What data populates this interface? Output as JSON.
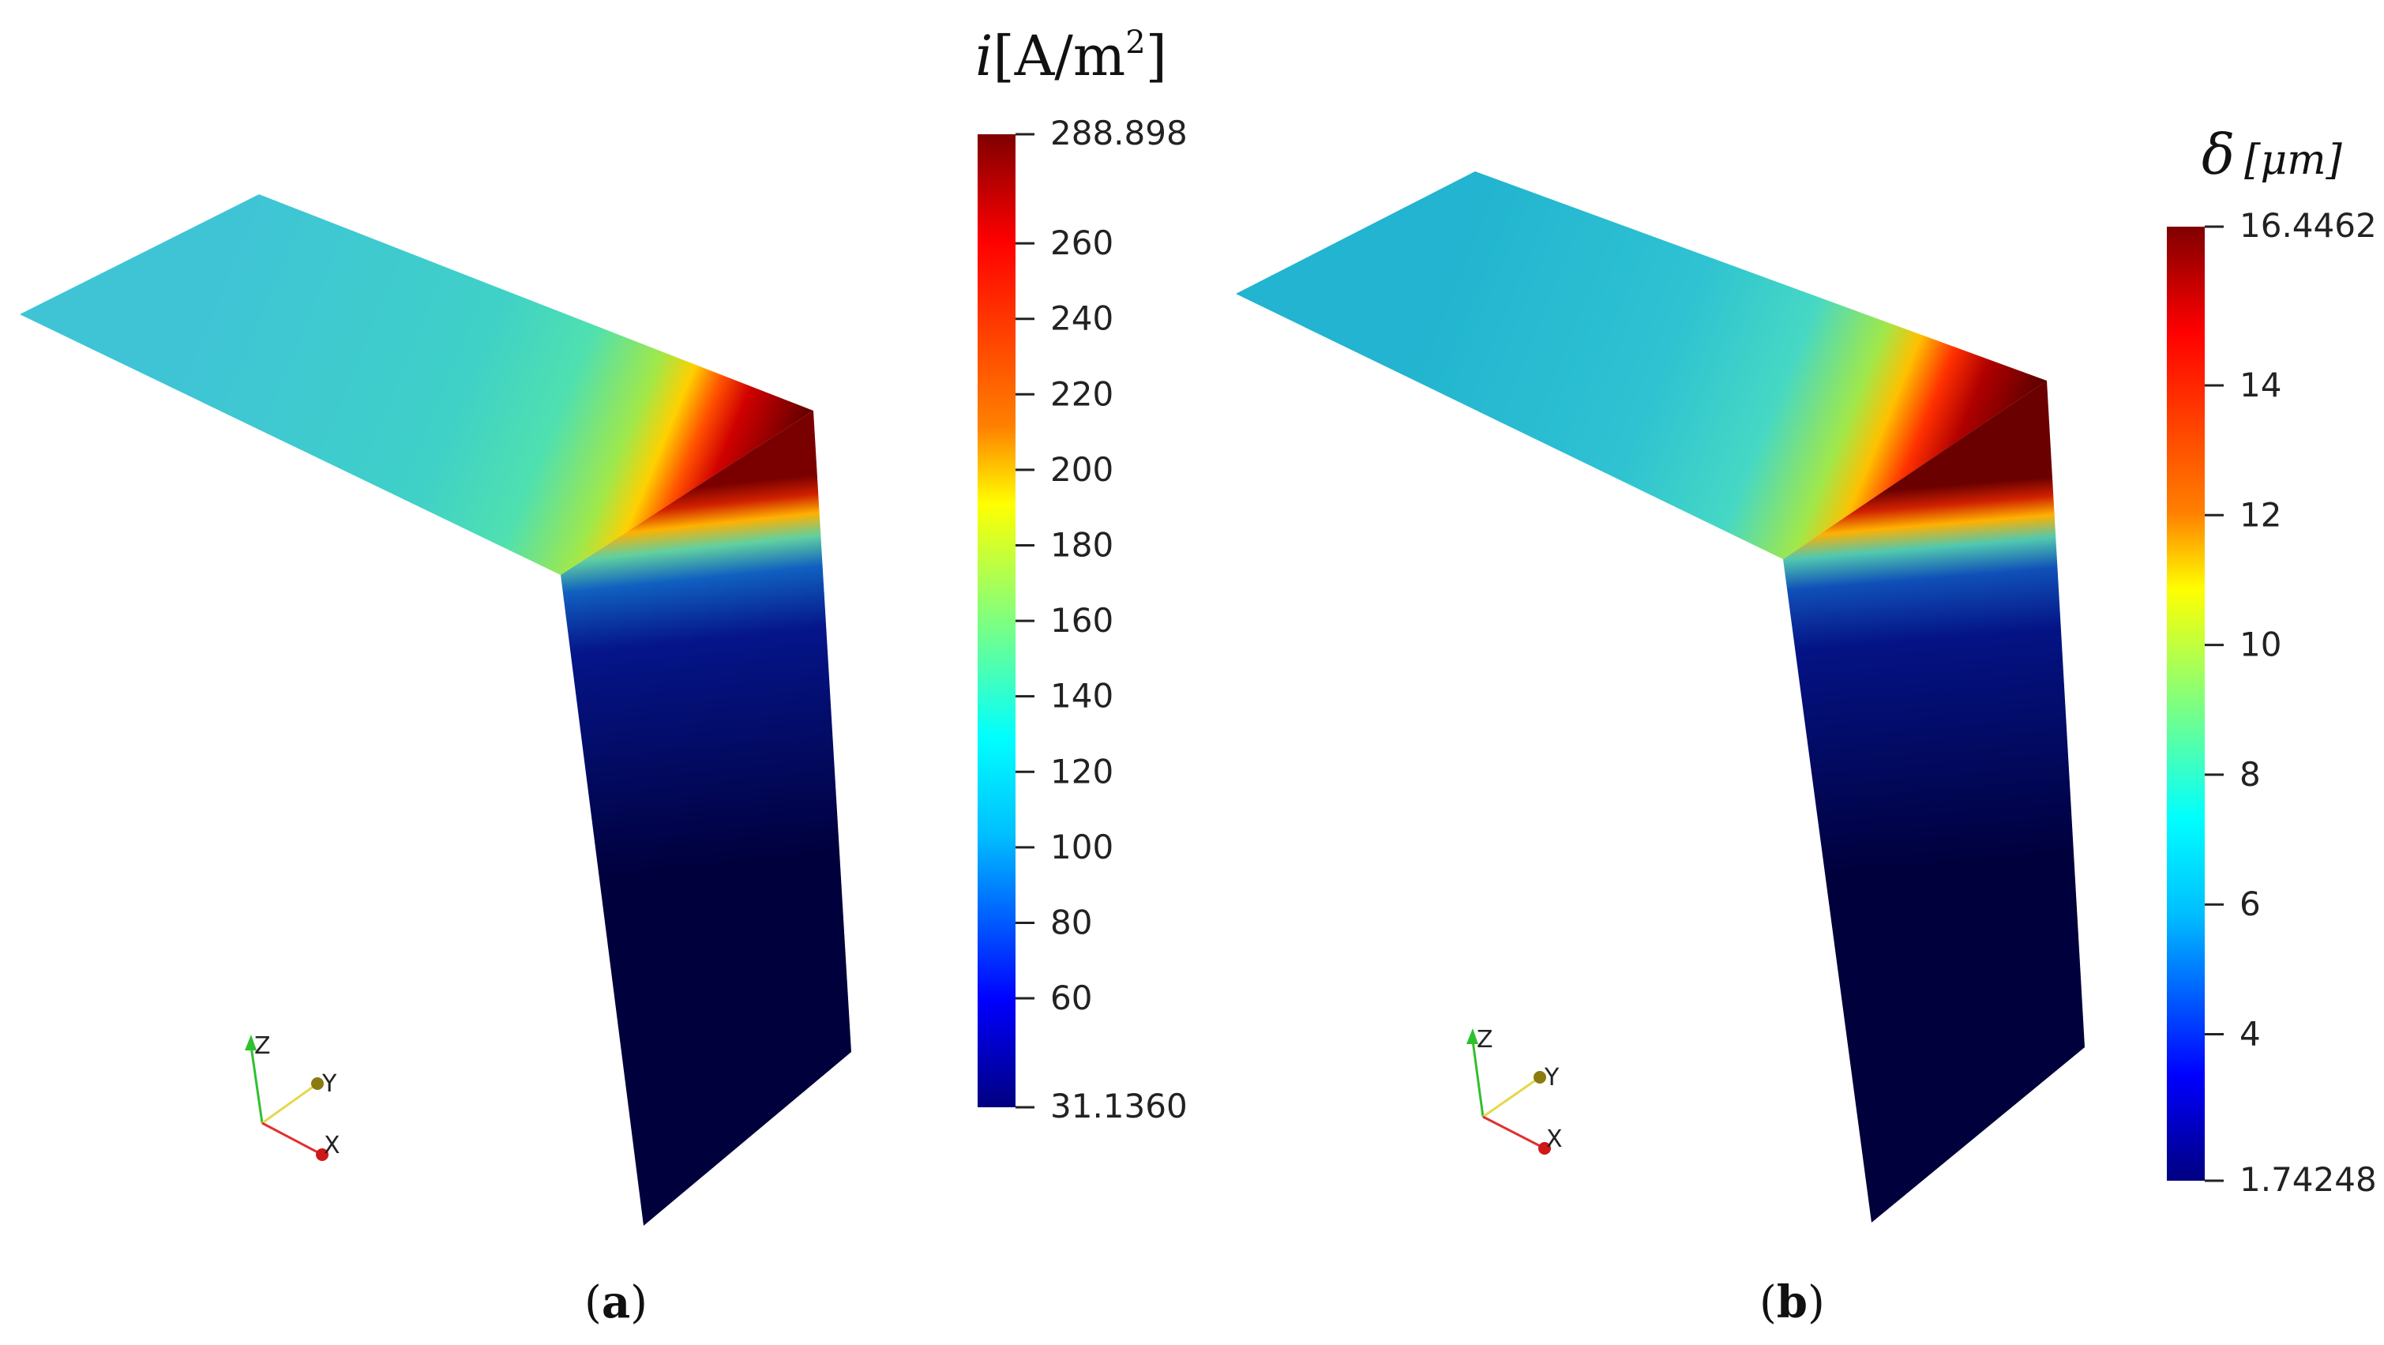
{
  "panels": [
    {
      "caption_open": "(",
      "caption_letter": "a",
      "caption_close": ")",
      "colorbar": {
        "title_var": "i",
        "title_unit": "[A/m",
        "title_exp": "2",
        "title_close": "]",
        "min_label": "31.1360",
        "max_label": "288.898",
        "ticks": [
          "260",
          "240",
          "220",
          "200",
          "180",
          "160",
          "140",
          "120",
          "100",
          "80",
          "60"
        ]
      },
      "axes_triad": {
        "z": "Z",
        "y": "Y",
        "x": "X"
      }
    },
    {
      "caption_open": "(",
      "caption_letter": "b",
      "caption_close": ")",
      "colorbar": {
        "title_var": "δ",
        "title_unit": "[μm]",
        "min_label": "1.74248",
        "max_label": "16.4462",
        "ticks": [
          "14",
          "12",
          "10",
          "8",
          "6",
          "4"
        ]
      },
      "axes_triad": {
        "z": "Z",
        "y": "Y",
        "x": "X"
      }
    }
  ],
  "colors": {
    "jet_stops": [
      "#000080",
      "#0000ff",
      "#00bfff",
      "#00ffff",
      "#7fff7f",
      "#ffff00",
      "#ff8000",
      "#ff0000",
      "#800000"
    ],
    "axis_x": "#e03030",
    "axis_y": "#e6d84a",
    "axis_z": "#2fc02f"
  }
}
